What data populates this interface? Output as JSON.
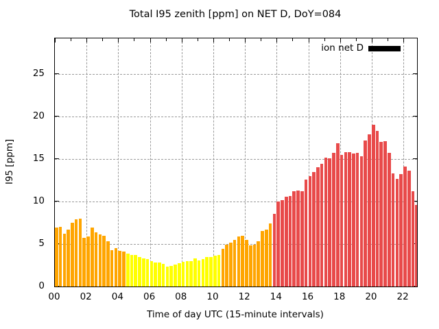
{
  "title": "Total I95 zenith [ppm] on NET D, DoY=084",
  "legend": {
    "label": "ion net D",
    "swatch_color": "#000000"
  },
  "axes": {
    "x_label": "Time of day UTC (15-minute intervals)",
    "y_label": "I95 [ppm]",
    "x_tick_labels": [
      "00",
      "02",
      "04",
      "06",
      "08",
      "10",
      "12",
      "14",
      "16",
      "18",
      "20",
      "22"
    ],
    "y_tick_labels": [
      "0",
      "5",
      "10",
      "15",
      "20",
      "25"
    ]
  },
  "colors": {
    "orange": "#ffa500",
    "yellow": "#ffff00",
    "red": "#e84a4a",
    "grid": "#9a9a9a",
    "axis": "#000000"
  },
  "chart_data": {
    "type": "bar",
    "title": "Total I95 zenith [ppm] on NET D, DoY=084",
    "xlabel": "Time of day UTC (15-minute intervals)",
    "ylabel": "I95 [ppm]",
    "legend": "ion net D",
    "legend_position": "top-right",
    "grid": true,
    "ylim": [
      0,
      29.2
    ],
    "xlim_hours": [
      0,
      22.86
    ],
    "interval_minutes": 15,
    "times": [
      "00:00",
      "00:15",
      "00:30",
      "00:45",
      "01:00",
      "01:15",
      "01:30",
      "01:45",
      "02:00",
      "02:15",
      "02:30",
      "02:45",
      "03:00",
      "03:15",
      "03:30",
      "03:45",
      "04:00",
      "04:15",
      "04:30",
      "04:45",
      "05:00",
      "05:15",
      "05:30",
      "05:45",
      "06:00",
      "06:15",
      "06:30",
      "06:45",
      "07:00",
      "07:15",
      "07:30",
      "07:45",
      "08:00",
      "08:15",
      "08:30",
      "08:45",
      "09:00",
      "09:15",
      "09:30",
      "09:45",
      "10:00",
      "10:15",
      "10:30",
      "10:45",
      "11:00",
      "11:15",
      "11:30",
      "11:45",
      "12:00",
      "12:15",
      "12:30",
      "12:45",
      "13:00",
      "13:15",
      "13:30",
      "13:45",
      "14:00",
      "14:15",
      "14:30",
      "14:45",
      "15:00",
      "15:15",
      "15:30",
      "15:45",
      "16:00",
      "16:15",
      "16:30",
      "16:45",
      "17:00",
      "17:15",
      "17:30",
      "17:45",
      "18:00",
      "18:15",
      "18:30",
      "18:45",
      "19:00",
      "19:15",
      "19:30",
      "19:45",
      "20:00",
      "20:15",
      "20:30",
      "20:45",
      "21:00",
      "21:15",
      "21:30",
      "21:45",
      "22:00",
      "22:15",
      "22:30",
      "22:45"
    ],
    "values": [
      6.9,
      7.0,
      6.2,
      6.7,
      7.5,
      7.9,
      8.0,
      5.7,
      5.9,
      6.9,
      6.4,
      6.1,
      6.0,
      5.3,
      4.3,
      4.5,
      4.2,
      4.1,
      3.85,
      3.7,
      3.7,
      3.5,
      3.3,
      3.2,
      3.0,
      2.85,
      2.8,
      2.7,
      2.35,
      2.45,
      2.55,
      2.75,
      2.9,
      3.0,
      2.95,
      3.3,
      3.1,
      3.25,
      3.45,
      3.5,
      3.65,
      3.7,
      4.4,
      4.9,
      5.15,
      5.5,
      5.85,
      5.95,
      5.45,
      4.85,
      4.9,
      5.3,
      6.5,
      6.7,
      7.4,
      8.55,
      10.0,
      10.2,
      10.6,
      10.65,
      11.2,
      11.3,
      11.25,
      12.6,
      13.0,
      13.5,
      14.0,
      14.4,
      15.2,
      15.1,
      15.7,
      16.9,
      15.5,
      15.8,
      15.8,
      15.65,
      15.7,
      15.3,
      17.2,
      17.9,
      19.0,
      18.3,
      17.0,
      17.1,
      15.7,
      13.3,
      12.7,
      13.25,
      14.1,
      13.65,
      11.2,
      9.6
    ],
    "color_segments": [
      {
        "from_time": "00:00",
        "to_time": "04:15",
        "color": "#ffa500",
        "name": "orange"
      },
      {
        "from_time": "04:30",
        "to_time": "10:15",
        "color": "#ffff00",
        "name": "yellow"
      },
      {
        "from_time": "10:30",
        "to_time": "13:30",
        "color": "#ffa500",
        "name": "orange"
      },
      {
        "from_time": "13:45",
        "to_time": "22:45",
        "color": "#e84a4a",
        "name": "red"
      }
    ]
  }
}
